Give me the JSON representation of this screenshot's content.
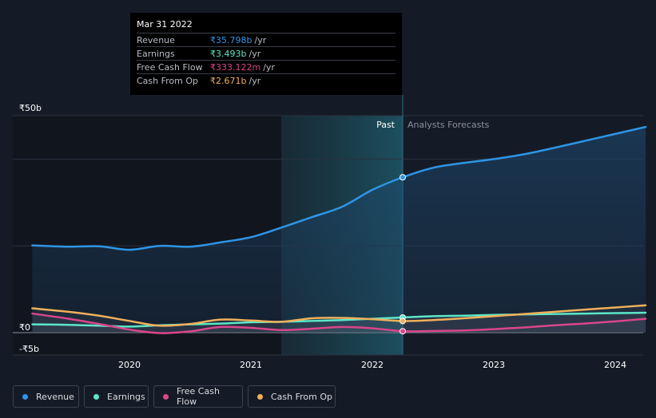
{
  "tooltip": {
    "date": "Mar 31 2022",
    "rows": [
      {
        "label": "Revenue",
        "value": "₹35.798b",
        "unit": "/yr",
        "color": "#2e95e6"
      },
      {
        "label": "Earnings",
        "value": "₹3.493b",
        "unit": "/yr",
        "color": "#5ce6c8"
      },
      {
        "label": "Free Cash Flow",
        "value": "₹333.122m",
        "unit": "/yr",
        "color": "#d9468a"
      },
      {
        "label": "Cash From Op",
        "value": "₹2.671b",
        "unit": "/yr",
        "color": "#f0b05a"
      }
    ]
  },
  "legend": [
    {
      "label": "Revenue",
      "color": "#2e95e6",
      "icon": "dot"
    },
    {
      "label": "Earnings",
      "color": "#5ce6c8",
      "icon": "dot"
    },
    {
      "label": "Free Cash Flow",
      "color": "#d9468a",
      "icon": "dot"
    },
    {
      "label": "Cash From Op",
      "color": "#f0b05a",
      "icon": "dot"
    }
  ],
  "chart_data": {
    "type": "line",
    "title": "",
    "xlabel": "",
    "ylabel": "",
    "past_label": "Past",
    "forecast_label": "Analysts Forecasts",
    "divider_x": 2022.25,
    "highlight_range": [
      2021.25,
      2022.25
    ],
    "xlim": [
      2019.0,
      2024.25
    ],
    "ylim": [
      -5,
      50
    ],
    "x_ticks": [
      2020,
      2021,
      2022,
      2023,
      2024
    ],
    "x_tick_labels": [
      "2020",
      "2021",
      "2022",
      "2023",
      "2024"
    ],
    "y_ticks": [
      {
        "value": 50,
        "label": "₹50b"
      },
      {
        "value": 0,
        "label": "₹0"
      },
      {
        "value": -5,
        "label": "-₹5b"
      }
    ],
    "grid": true,
    "legend_position": "bottom-left",
    "series": [
      {
        "name": "Revenue",
        "color": "#2e95e6",
        "fill": true,
        "points": [
          [
            2019.2,
            20.1
          ],
          [
            2019.5,
            19.8
          ],
          [
            2019.75,
            19.9
          ],
          [
            2020.0,
            19.1
          ],
          [
            2020.25,
            20.0
          ],
          [
            2020.5,
            19.8
          ],
          [
            2020.75,
            20.8
          ],
          [
            2021.0,
            22.0
          ],
          [
            2021.25,
            24.2
          ],
          [
            2021.5,
            26.6
          ],
          [
            2021.75,
            29.0
          ],
          [
            2022.0,
            32.9
          ],
          [
            2022.25,
            35.8
          ],
          [
            2022.5,
            38.0
          ],
          [
            2022.75,
            39.1
          ],
          [
            2023.0,
            40.0
          ],
          [
            2023.25,
            41.1
          ],
          [
            2023.5,
            42.6
          ],
          [
            2023.75,
            44.2
          ],
          [
            2024.0,
            45.8
          ],
          [
            2024.25,
            47.4
          ]
        ],
        "marker_x": 2022.25
      },
      {
        "name": "Earnings",
        "color": "#5ce6c8",
        "fill": false,
        "points": [
          [
            2019.2,
            1.9
          ],
          [
            2019.5,
            1.8
          ],
          [
            2019.75,
            1.6
          ],
          [
            2020.0,
            1.4
          ],
          [
            2020.25,
            1.7
          ],
          [
            2020.5,
            1.9
          ],
          [
            2020.75,
            2.1
          ],
          [
            2021.0,
            2.4
          ],
          [
            2021.25,
            2.5
          ],
          [
            2021.5,
            2.7
          ],
          [
            2021.75,
            2.9
          ],
          [
            2022.0,
            3.2
          ],
          [
            2022.25,
            3.5
          ],
          [
            2022.5,
            3.8
          ],
          [
            2022.75,
            3.9
          ],
          [
            2023.0,
            4.1
          ],
          [
            2023.25,
            4.2
          ],
          [
            2023.5,
            4.3
          ],
          [
            2023.75,
            4.4
          ],
          [
            2024.0,
            4.5
          ],
          [
            2024.25,
            4.6
          ]
        ],
        "marker_x": 2022.25
      },
      {
        "name": "Free Cash Flow",
        "color": "#d9468a",
        "fill": false,
        "points": [
          [
            2019.2,
            4.4
          ],
          [
            2019.5,
            3.2
          ],
          [
            2019.75,
            2.0
          ],
          [
            2020.0,
            0.7
          ],
          [
            2020.25,
            -0.1
          ],
          [
            2020.5,
            0.3
          ],
          [
            2020.75,
            1.3
          ],
          [
            2021.0,
            1.1
          ],
          [
            2021.25,
            0.6
          ],
          [
            2021.5,
            0.9
          ],
          [
            2021.75,
            1.3
          ],
          [
            2022.0,
            1.0
          ],
          [
            2022.25,
            0.33
          ],
          [
            2022.5,
            0.4
          ],
          [
            2022.75,
            0.5
          ],
          [
            2023.0,
            0.8
          ],
          [
            2023.25,
            1.2
          ],
          [
            2023.5,
            1.7
          ],
          [
            2023.75,
            2.1
          ],
          [
            2024.0,
            2.6
          ],
          [
            2024.25,
            3.2
          ]
        ],
        "marker_x": 2022.25
      },
      {
        "name": "Cash From Op",
        "color": "#f0b05a",
        "fill": false,
        "points": [
          [
            2019.2,
            5.6
          ],
          [
            2019.5,
            4.8
          ],
          [
            2019.75,
            3.9
          ],
          [
            2020.0,
            2.7
          ],
          [
            2020.25,
            1.6
          ],
          [
            2020.5,
            2.0
          ],
          [
            2020.75,
            3.0
          ],
          [
            2021.0,
            2.8
          ],
          [
            2021.25,
            2.5
          ],
          [
            2021.5,
            3.3
          ],
          [
            2021.75,
            3.4
          ],
          [
            2022.0,
            3.1
          ],
          [
            2022.25,
            2.67
          ],
          [
            2022.5,
            2.9
          ],
          [
            2022.75,
            3.3
          ],
          [
            2023.0,
            3.8
          ],
          [
            2023.25,
            4.3
          ],
          [
            2023.5,
            4.8
          ],
          [
            2023.75,
            5.3
          ],
          [
            2024.0,
            5.8
          ],
          [
            2024.25,
            6.3
          ]
        ],
        "marker_x": 2022.25
      }
    ]
  }
}
